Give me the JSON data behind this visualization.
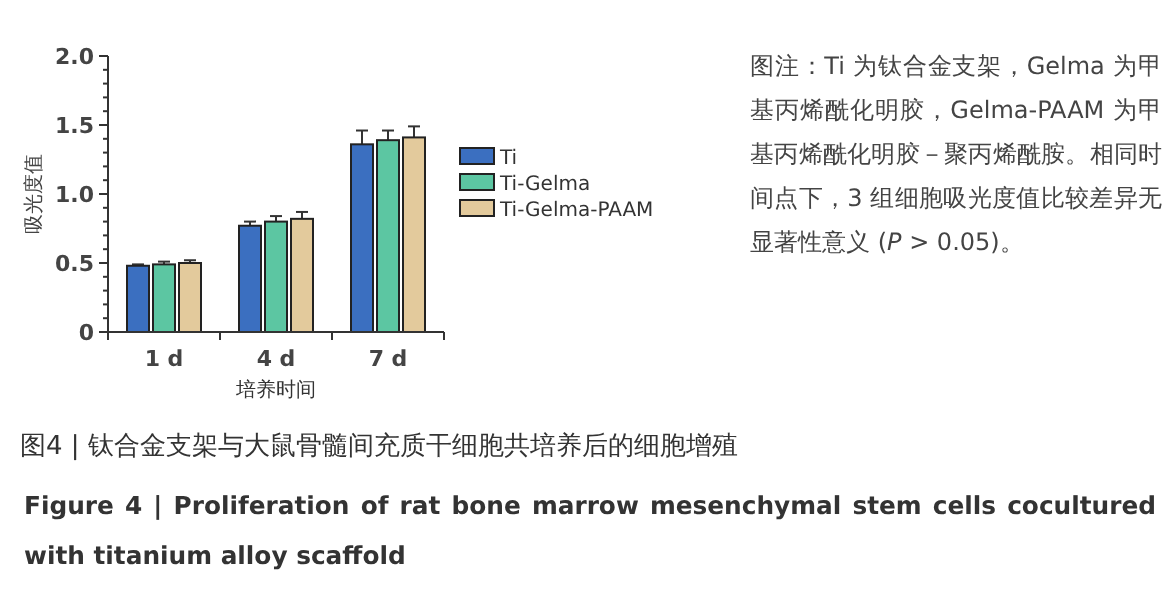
{
  "chart_data": {
    "type": "bar",
    "title": "图4 | 钛合金支架与大鼠骨髓间充质干细胞共培养后的细胞增殖",
    "subtitle": "Figure 4 | Proliferation of rat bone marrow mesenchymal stem cells cocultured with titanium alloy scaffold",
    "xlabel": "培养时间",
    "ylabel": "吸光度值",
    "categories": [
      "1 d",
      "4 d",
      "7 d"
    ],
    "series": [
      {
        "name": "Ti",
        "color": "#3b6fc0",
        "values": [
          0.48,
          0.77,
          1.36
        ],
        "errors": [
          0.01,
          0.03,
          0.1
        ]
      },
      {
        "name": "Ti-Gelma",
        "color": "#5cc6a2",
        "values": [
          0.49,
          0.8,
          1.39
        ],
        "errors": [
          0.02,
          0.04,
          0.07
        ]
      },
      {
        "name": "Ti-Gelma-PAAM",
        "color": "#e3ca9c",
        "values": [
          0.5,
          0.82,
          1.41
        ],
        "errors": [
          0.02,
          0.05,
          0.08
        ]
      }
    ],
    "ylim": [
      0,
      2.0
    ],
    "yticks": [
      {
        "value": 0,
        "label": "0"
      },
      {
        "value": 0.1,
        "label": null
      },
      {
        "value": 0.2,
        "label": null
      },
      {
        "value": 0.3,
        "label": null
      },
      {
        "value": 0.4,
        "label": null
      },
      {
        "value": 0.5,
        "label": "0.5"
      },
      {
        "value": 0.6,
        "label": null
      },
      {
        "value": 0.7,
        "label": null
      },
      {
        "value": 0.8,
        "label": null
      },
      {
        "value": 0.9,
        "label": null
      },
      {
        "value": 1.0,
        "label": "1.0"
      },
      {
        "value": 1.1,
        "label": null
      },
      {
        "value": 1.2,
        "label": null
      },
      {
        "value": 1.3,
        "label": null
      },
      {
        "value": 1.4,
        "label": null
      },
      {
        "value": 1.5,
        "label": "1.5"
      },
      {
        "value": 1.6,
        "label": null
      },
      {
        "value": 1.7,
        "label": null
      },
      {
        "value": 1.8,
        "label": null
      },
      {
        "value": 1.9,
        "label": null
      },
      {
        "value": 2.0,
        "label": "2.0"
      }
    ],
    "legend": "right",
    "grid": false,
    "annotations": [
      "图注：Ti 为钛合金支架，Gelma 为甲基丙烯酰化明胶，Gelma-PAAM 为甲基丙烯酰化明胶－聚丙烯酰胺。相同时间点下，3 组细胞吸光度值比较差异无显著性意义 (*P* > 0.05)。"
    ]
  }
}
